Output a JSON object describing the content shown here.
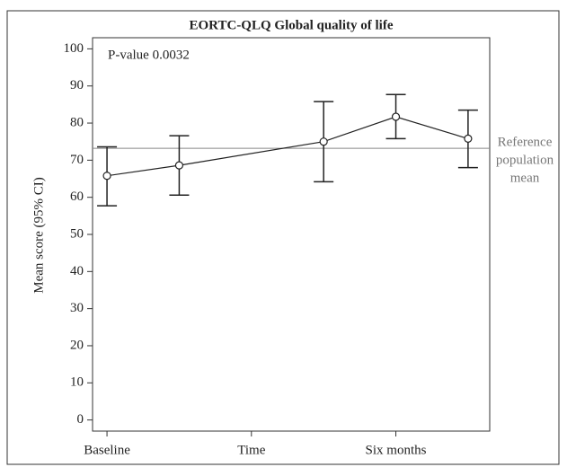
{
  "chart_data": {
    "type": "line",
    "title": "EORTC-QLQ Global quality of life",
    "x_label": "Time",
    "y_label": "Mean score (95% CI)",
    "annotation": "P-value 0.0032",
    "reference_line": 73.2,
    "reference_label": [
      "Reference",
      "population",
      "mean"
    ],
    "x": [
      0,
      1,
      3,
      4,
      5
    ],
    "xlim": [
      -0.2,
      5.3
    ],
    "xticks": [
      {
        "value": 0,
        "label": "Baseline"
      },
      {
        "value": 2,
        "label": "Time"
      },
      {
        "value": 4,
        "label": "Six months"
      }
    ],
    "ylim": [
      -3,
      103
    ],
    "yticks": [
      0,
      10,
      20,
      30,
      40,
      50,
      60,
      70,
      80,
      90,
      100
    ],
    "series": [
      {
        "color": "#222222",
        "values": [
          65.8,
          68.6,
          75.0,
          81.7,
          75.8
        ],
        "lower": [
          57.7,
          60.6,
          64.2,
          75.8,
          68.0
        ],
        "upper": [
          73.6,
          76.6,
          85.8,
          87.7,
          83.5
        ]
      }
    ]
  }
}
